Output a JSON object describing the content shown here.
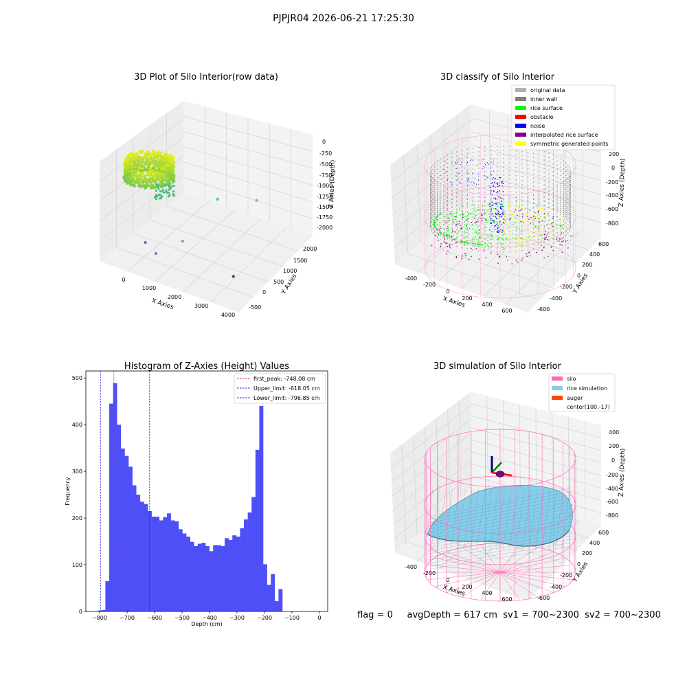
{
  "figure": {
    "suptitle": "PJPJR04 2026-06-21 17:25:30",
    "footer": {
      "flag": "flag = 0",
      "avg_depth": "avgDepth = 617 cm",
      "sv1": "sv1 = 700~2300",
      "sv2": "sv2 = 700~2300"
    }
  },
  "colors": {
    "histogram_bar": "#4f4ff8",
    "first_peak_line": "#d62728",
    "limit_lines": "#1f1fd6",
    "original_data": "#b3b3b3",
    "inner_wall": "#808080",
    "rice_surface": "#00ff00",
    "obstacle": "#ff0000",
    "noise": "#0000ff",
    "interpolated_rice_surface": "#800080",
    "symmetric_generated_points": "#ffff00",
    "silo": "#ff69b4",
    "rice_simulation": "#87ceeb",
    "auger": "#ff4500"
  },
  "chart_data": [
    {
      "type": "scatter3d",
      "title": "3D Plot of Silo Interior(row data)",
      "xlabel": "X Axies",
      "ylabel": "Y Axies",
      "zlabel": "Z Axies (Depth)",
      "x_ticks": [
        "0",
        "1000",
        "2000",
        "3000",
        "4000"
      ],
      "y_ticks": [
        "-500",
        "0",
        "500",
        "1000",
        "1500",
        "2000"
      ],
      "z_ticks": [
        "0",
        "-250",
        "-500",
        "-750",
        "-1000",
        "-1250",
        "-1500",
        "-1750",
        "-2000"
      ],
      "xlim": [
        -600,
        4100
      ],
      "ylim": [
        -700,
        2300
      ],
      "zlim": [
        -2100,
        100
      ],
      "outliers": [
        {
          "x": 2200,
          "y": 1000,
          "z": -1000
        },
        {
          "x": 3300,
          "y": 1500,
          "z": -1100
        },
        {
          "x": 1700,
          "y": 0,
          "z": -1500
        },
        {
          "x": 500,
          "y": -300,
          "z": -1600
        },
        {
          "x": 1000,
          "y": -400,
          "z": -1700
        },
        {
          "x": 3600,
          "y": 100,
          "z": -2000
        }
      ]
    },
    {
      "type": "scatter3d",
      "title": "3D classify of Silo Interior",
      "xlabel": "X Axies",
      "ylabel": "Y Axies",
      "zlabel": "Z Axies (Depth)",
      "x_ticks": [
        "-400",
        "-200",
        "0",
        "200",
        "400",
        "600"
      ],
      "y_ticks": [
        "-600",
        "-400",
        "-200",
        "0",
        "200",
        "400",
        "600"
      ],
      "z_ticks": [
        "200",
        "0",
        "-200",
        "-400",
        "-600",
        "-800"
      ],
      "legend_position": "upper right",
      "legend": [
        "original data",
        "inner wall",
        "rice surface",
        "obstacle",
        "noise",
        "interpolated rice surface",
        "symmetric generated points"
      ]
    },
    {
      "type": "bar",
      "title": "Histogram of Z-Axies (Height) Values",
      "xlabel": "Depth (cm)",
      "ylabel": "Frequency",
      "xlim": [
        -850,
        30
      ],
      "ylim": [
        0,
        515
      ],
      "x_ticks": [
        -800,
        -700,
        -600,
        -500,
        -400,
        -300,
        -200,
        -100,
        0
      ],
      "y_ticks": [
        0,
        100,
        200,
        300,
        400,
        500
      ],
      "bin_start": -807,
      "bin_width": 14,
      "values": [
        2,
        3,
        65,
        445,
        489,
        400,
        349,
        333,
        310,
        270,
        250,
        235,
        230,
        215,
        203,
        203,
        195,
        202,
        210,
        195,
        193,
        176,
        167,
        160,
        149,
        140,
        145,
        147,
        140,
        129,
        142,
        142,
        140,
        157,
        153,
        163,
        160,
        178,
        197,
        212,
        245,
        346,
        440,
        101,
        57,
        80,
        22,
        48
      ],
      "vlines": [
        {
          "x": -748.08,
          "label": "first_peak: -748.08 cm",
          "style": "first_peak"
        },
        {
          "x": -618.05,
          "label": "Upper_limit: -618.05 cm",
          "style": "limit"
        },
        {
          "x": -796.85,
          "label": "Lower_limit: -796.85 cm",
          "style": "limit"
        }
      ],
      "legend_position": "upper right"
    },
    {
      "type": "surface3d",
      "title": "3D simulation of Silo Interior",
      "xlabel": "X Axies",
      "ylabel": "Y Axies",
      "zlabel": "Z Axies (Depth)",
      "x_ticks": [
        "-400",
        "-200",
        "0",
        "200",
        "400",
        "600"
      ],
      "y_ticks": [
        "-600",
        "-400",
        "-200",
        "0",
        "200",
        "400",
        "600"
      ],
      "z_ticks": [
        "400",
        "200",
        "0",
        "-200",
        "-400",
        "-600",
        "-800"
      ],
      "legend_position": "upper right",
      "legend": [
        "silo",
        "rice simulation",
        "auger",
        "center(100,-17)"
      ]
    }
  ]
}
